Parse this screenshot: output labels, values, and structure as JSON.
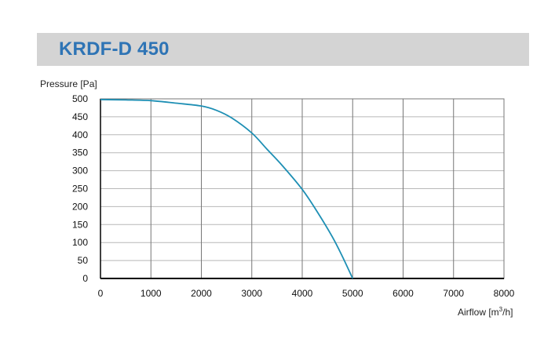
{
  "header": {
    "title": "KRDF-D 450"
  },
  "chart_data": {
    "type": "line",
    "title": "KRDF-D 450",
    "ylabel": "Pressure [Pa]",
    "xlabel_prefix": "Airflow [m",
    "xlabel_sup": "3",
    "xlabel_suffix": "/h]",
    "xlim": [
      0,
      8000
    ],
    "ylim": [
      0,
      500
    ],
    "xticks": [
      0,
      1000,
      2000,
      3000,
      4000,
      5000,
      6000,
      7000,
      8000
    ],
    "yticks": [
      0,
      50,
      100,
      150,
      200,
      250,
      300,
      350,
      400,
      450,
      500
    ],
    "grid": true,
    "line_color": "#1e8fb4",
    "series": [
      {
        "x": [
          0,
          500,
          1000,
          1500,
          2000,
          2300,
          2600,
          3000,
          3300,
          3600,
          4000,
          4300,
          4600,
          4800,
          5000
        ],
        "y": [
          498,
          497,
          495,
          488,
          480,
          468,
          447,
          405,
          360,
          315,
          248,
          185,
          115,
          60,
          0
        ]
      }
    ]
  }
}
